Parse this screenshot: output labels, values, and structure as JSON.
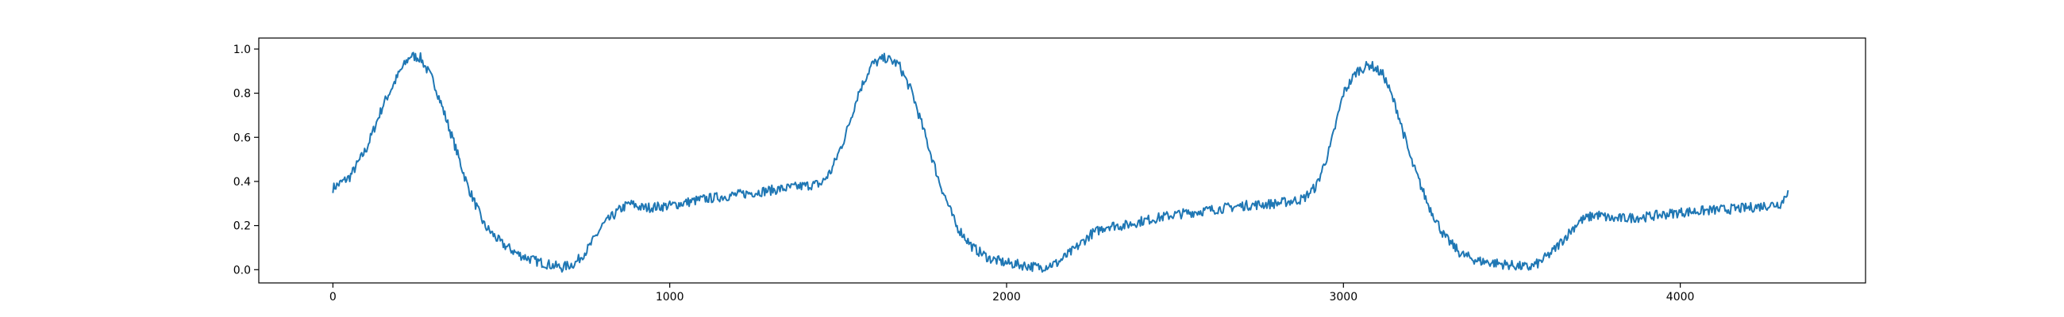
{
  "chart_data": {
    "type": "line",
    "title": "",
    "xlabel": "",
    "ylabel": "",
    "xlim": [
      -220,
      4550
    ],
    "ylim": [
      -0.06,
      1.05
    ],
    "x_ticks": [
      0,
      1000,
      2000,
      3000,
      4000
    ],
    "x_tick_labels": [
      "0",
      "1000",
      "2000",
      "3000",
      "4000"
    ],
    "y_ticks": [
      0.0,
      0.2,
      0.4,
      0.6,
      0.8,
      1.0
    ],
    "y_tick_labels": [
      "0.0",
      "0.2",
      "0.4",
      "0.6",
      "0.8",
      "1.0"
    ],
    "grid": false,
    "legend": "none",
    "series": [
      {
        "color": "#1f77b4",
        "x": [
          0,
          50,
          100,
          150,
          200,
          230,
          260,
          300,
          350,
          400,
          450,
          500,
          550,
          600,
          650,
          680,
          720,
          760,
          800,
          850,
          880,
          920,
          1000,
          1100,
          1200,
          1300,
          1400,
          1450,
          1480,
          1520,
          1560,
          1600,
          1640,
          1680,
          1720,
          1760,
          1800,
          1850,
          1900,
          1950,
          2000,
          2050,
          2100,
          2150,
          2200,
          2250,
          2300,
          2350,
          2400,
          2500,
          2600,
          2700,
          2800,
          2880,
          2920,
          2960,
          3000,
          3040,
          3080,
          3120,
          3160,
          3200,
          3250,
          3300,
          3350,
          3400,
          3450,
          3500,
          3550,
          3580,
          3620,
          3660,
          3700,
          3750,
          3800,
          3900,
          4000,
          4100,
          4200,
          4300,
          4320
        ],
        "y": [
          0.37,
          0.42,
          0.55,
          0.75,
          0.9,
          0.97,
          0.96,
          0.85,
          0.62,
          0.38,
          0.2,
          0.12,
          0.07,
          0.04,
          0.02,
          0.01,
          0.03,
          0.1,
          0.2,
          0.27,
          0.3,
          0.28,
          0.29,
          0.32,
          0.34,
          0.36,
          0.38,
          0.39,
          0.45,
          0.6,
          0.8,
          0.93,
          0.96,
          0.93,
          0.8,
          0.6,
          0.4,
          0.2,
          0.1,
          0.05,
          0.03,
          0.02,
          0.01,
          0.03,
          0.09,
          0.16,
          0.2,
          0.2,
          0.22,
          0.25,
          0.27,
          0.29,
          0.3,
          0.32,
          0.38,
          0.55,
          0.8,
          0.9,
          0.93,
          0.88,
          0.72,
          0.5,
          0.3,
          0.15,
          0.07,
          0.04,
          0.03,
          0.02,
          0.01,
          0.03,
          0.08,
          0.15,
          0.22,
          0.25,
          0.23,
          0.24,
          0.26,
          0.27,
          0.28,
          0.3,
          0.36
        ]
      }
    ]
  }
}
